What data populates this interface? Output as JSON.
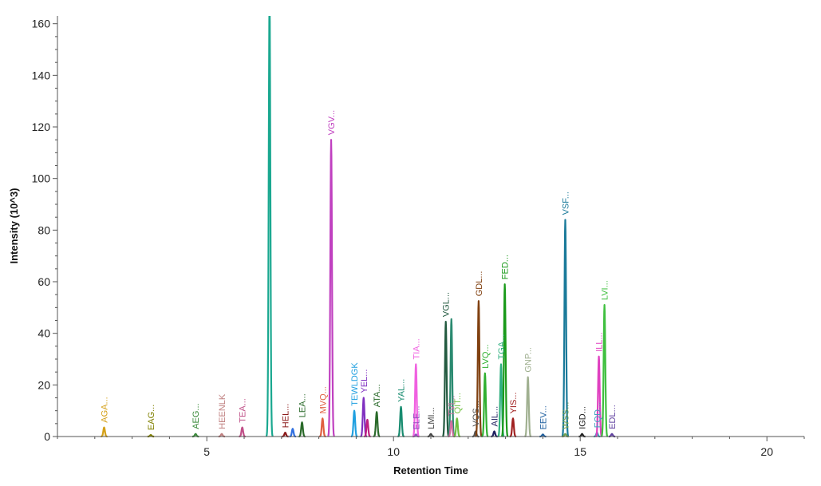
{
  "chart_data": {
    "type": "line",
    "xlabel": "Retention Time",
    "ylabel": "Intensity (10^3)",
    "xlim": [
      1,
      21
    ],
    "ylim": [
      0,
      163
    ],
    "x_ticks": [
      5,
      10,
      15,
      20
    ],
    "y_ticks": [
      0,
      20,
      40,
      60,
      80,
      100,
      120,
      140,
      160
    ],
    "grid": false,
    "legend": "none",
    "peaks": [
      {
        "label": "AGA...",
        "x": 2.25,
        "y": 3.5,
        "color": "#d4a017"
      },
      {
        "label": "EAG...",
        "x": 3.5,
        "y": 0.6,
        "color": "#808000"
      },
      {
        "label": "AEG...",
        "x": 4.7,
        "y": 1.0,
        "color": "#3a8a3a"
      },
      {
        "label": "HEENLK",
        "x": 5.4,
        "y": 1.0,
        "color": "#c08080"
      },
      {
        "label": "TEA...",
        "x": 5.95,
        "y": 3.5,
        "color": "#c05088"
      },
      {
        "label": "",
        "x": 6.68,
        "y": 170,
        "color": "#1aa890"
      },
      {
        "label": "HEL...",
        "x": 7.1,
        "y": 1.5,
        "color": "#8b1a1a"
      },
      {
        "label": "",
        "x": 7.3,
        "y": 3.0,
        "color": "#3070e0"
      },
      {
        "label": "LEA...",
        "x": 7.55,
        "y": 5.5,
        "color": "#2a6a2a"
      },
      {
        "label": "MVQ...",
        "x": 8.1,
        "y": 7.0,
        "color": "#e06040"
      },
      {
        "label": "VGV...",
        "x": 8.33,
        "y": 115,
        "color": "#c040c0"
      },
      {
        "label": "TEWLDGK",
        "x": 8.95,
        "y": 10.0,
        "color": "#20a0e0"
      },
      {
        "label": "YEL...",
        "x": 9.2,
        "y": 15.0,
        "color": "#8030c0"
      },
      {
        "label": "",
        "x": 9.3,
        "y": 6.5,
        "color": "#c02080"
      },
      {
        "label": "ATA...",
        "x": 9.55,
        "y": 9.5,
        "color": "#2a6a2a"
      },
      {
        "label": "YAL...",
        "x": 10.2,
        "y": 11.5,
        "color": "#188c70"
      },
      {
        "label": "ELE...",
        "x": 10.6,
        "y": 0.8,
        "color": "#9050c0"
      },
      {
        "label": "TIA...",
        "x": 10.6,
        "y": 28,
        "color": "#f060e0"
      },
      {
        "label": "LMI...",
        "x": 11.0,
        "y": 1.0,
        "color": "#444444"
      },
      {
        "label": "VGL...",
        "x": 11.4,
        "y": 44.5,
        "color": "#235a40"
      },
      {
        "label": "",
        "x": 11.55,
        "y": 45.5,
        "color": "#2a8a70"
      },
      {
        "label": "TVI...",
        "x": 11.55,
        "y": 6.0,
        "color": "#d070a0"
      },
      {
        "label": "QIT...",
        "x": 11.7,
        "y": 7.0,
        "color": "#70c040"
      },
      {
        "label": "VQS...",
        "x": 12.2,
        "y": 2.0,
        "color": "#555555"
      },
      {
        "label": "GDL...",
        "x": 12.28,
        "y": 52.5,
        "color": "#804010"
      },
      {
        "label": "LVQ...",
        "x": 12.45,
        "y": 24.5,
        "color": "#30b030"
      },
      {
        "label": "AIL...",
        "x": 12.7,
        "y": 2.0,
        "color": "#202060"
      },
      {
        "label": "TGA...",
        "x": 12.88,
        "y": 28,
        "color": "#30b080"
      },
      {
        "label": "FED...",
        "x": 12.98,
        "y": 59,
        "color": "#1a9a1a"
      },
      {
        "label": "YIS...",
        "x": 13.2,
        "y": 7.0,
        "color": "#a02020"
      },
      {
        "label": "GNP...",
        "x": 13.6,
        "y": 23,
        "color": "#a0b090"
      },
      {
        "label": "EEV...",
        "x": 14.0,
        "y": 0.8,
        "color": "#2060a0"
      },
      {
        "label": "VSF...",
        "x": 14.6,
        "y": 84,
        "color": "#1a7a9a"
      },
      {
        "label": "WSS...",
        "x": 14.6,
        "y": 1.0,
        "color": "#70a050"
      },
      {
        "label": "IGD...",
        "x": 15.05,
        "y": 1.0,
        "color": "#202020"
      },
      {
        "label": "FQD...",
        "x": 15.45,
        "y": 1.5,
        "color": "#40a0c0"
      },
      {
        "label": "ILL...",
        "x": 15.5,
        "y": 31,
        "color": "#e040c0"
      },
      {
        "label": "LVI...",
        "x": 15.65,
        "y": 51,
        "color": "#40c040"
      },
      {
        "label": "EDL...",
        "x": 15.85,
        "y": 1.0,
        "color": "#6040a0"
      }
    ]
  }
}
